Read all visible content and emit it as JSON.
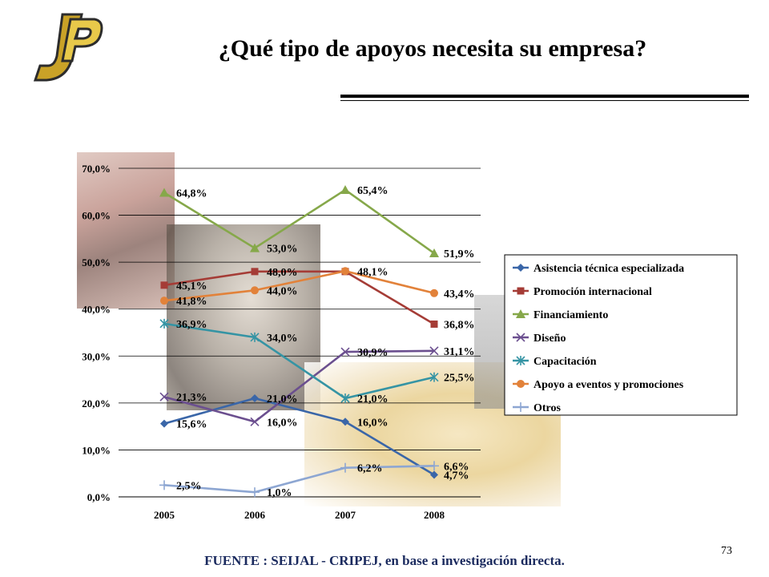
{
  "header": {
    "title": "¿Qué tipo de apoyos necesita su empresa?",
    "logo_colors": [
      "#c9a227",
      "#2c2c2c"
    ]
  },
  "footer": {
    "source": "FUENTE :  SEIJAL - CRIPEJ,  en base a investigación directa.",
    "page_number": "73"
  },
  "chart_data": {
    "type": "line",
    "title": "",
    "xlabel": "",
    "ylabel": "",
    "x": [
      "2005",
      "2006",
      "2007",
      "2008"
    ],
    "ylim": [
      0,
      70
    ],
    "yticks": [
      "0,0%",
      "10,0%",
      "20,0%",
      "30,0%",
      "40,0%",
      "50,0%",
      "60,0%",
      "70,0%"
    ],
    "grid": true,
    "legend_position": "right",
    "series": [
      {
        "name": "Asistencia técnica especializada",
        "color": "#3a66a8",
        "marker": "diamond",
        "values": [
          15.6,
          21.0,
          16.0,
          4.7
        ],
        "labels": [
          "15,6%",
          "21,0%",
          "16,0%",
          "4,7%"
        ]
      },
      {
        "name": "Promoción internacional",
        "color": "#a53c36",
        "marker": "square",
        "values": [
          45.1,
          48.0,
          48.0,
          36.8
        ],
        "labels": [
          "45,1%",
          "48,0%",
          "",
          "36,8%"
        ]
      },
      {
        "name": "Financiamiento",
        "color": "#86a84a",
        "marker": "triangle",
        "values": [
          64.8,
          53.0,
          65.4,
          51.9
        ],
        "labels": [
          "64,8%",
          "53,0%",
          "65,4%",
          "51,9%"
        ]
      },
      {
        "name": "Diseño",
        "color": "#6b4f8f",
        "marker": "x",
        "values": [
          21.3,
          16.0,
          30.9,
          31.1
        ],
        "labels": [
          "21,3%",
          "16,0%",
          "30,9%",
          "31,1%"
        ]
      },
      {
        "name": "Capacitación",
        "color": "#3594a4",
        "marker": "star",
        "values": [
          36.9,
          34.0,
          21.0,
          25.5
        ],
        "labels": [
          "36,9%",
          "34,0%",
          "21,0%",
          "25,5%"
        ]
      },
      {
        "name": "Apoyo a eventos y promociones",
        "color": "#e2823a",
        "marker": "circle",
        "values": [
          41.8,
          44.0,
          48.1,
          43.4
        ],
        "labels": [
          "41,8%",
          "44,0%",
          "48,1%",
          "43,4%"
        ]
      },
      {
        "name": "Otros",
        "color": "#8da6d2",
        "marker": "plus",
        "values": [
          2.5,
          1.0,
          6.2,
          6.6
        ],
        "labels": [
          "2,5%",
          "1,0%",
          "6,2%",
          "6,6%"
        ]
      }
    ]
  }
}
